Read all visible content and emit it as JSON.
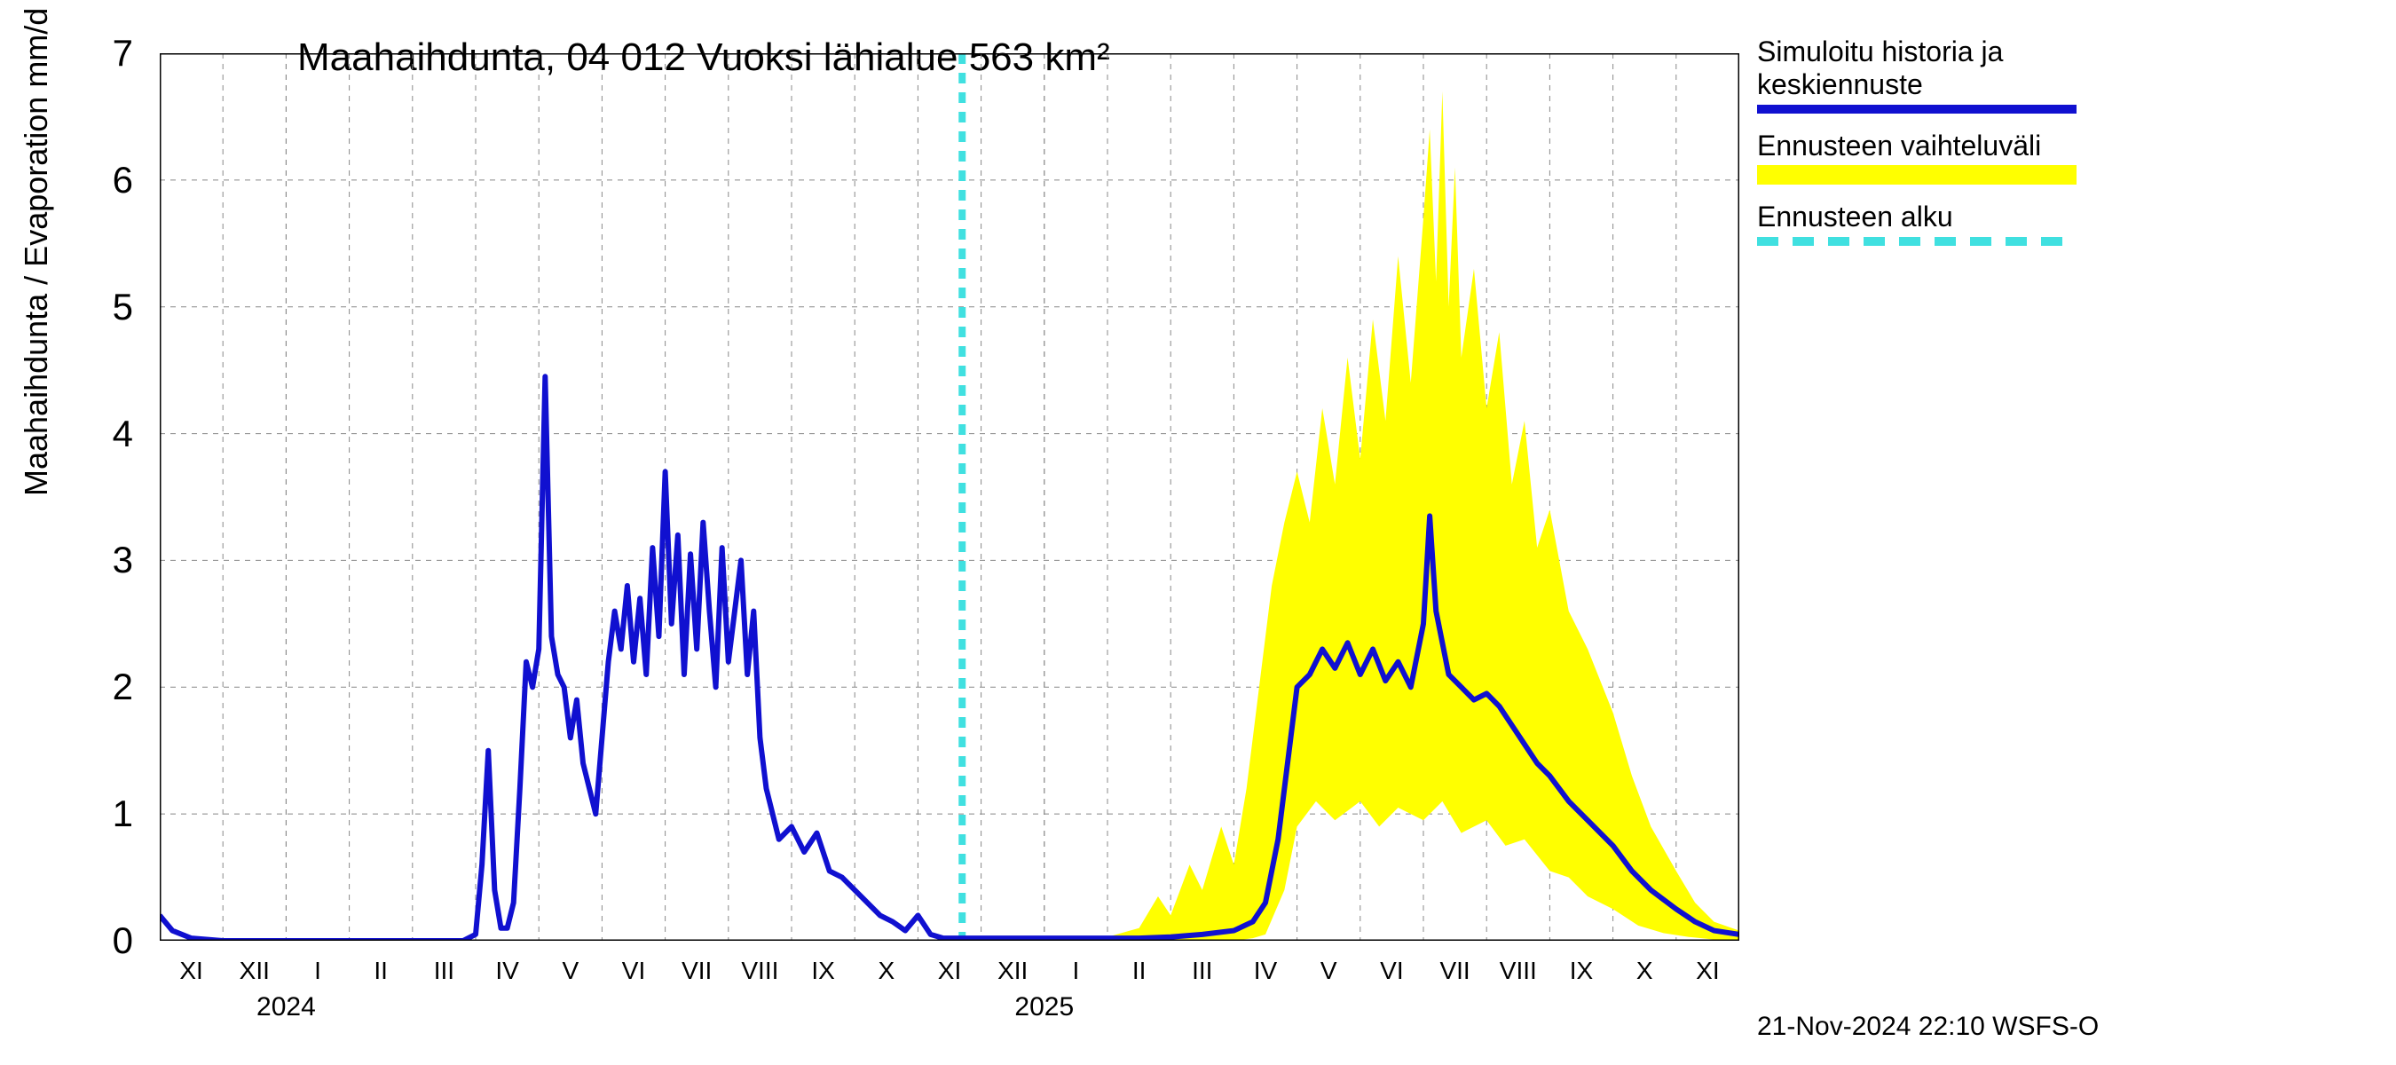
{
  "chart": {
    "title": "Maahaihdunta, 04 012 Vuoksi lähialue 563 km²",
    "y_axis_title": "Maahaihdunta / Evaporation   mm/d",
    "type": "line-with-band",
    "background_color": "#ffffff",
    "grid_color": "#888888",
    "axis_color": "#000000",
    "title_fontsize": 44,
    "axis_label_fontsize": 36,
    "tick_label_fontsize": 28,
    "ylim": [
      0,
      7
    ],
    "ytick_step": 1,
    "yticks": [
      0,
      1,
      2,
      3,
      4,
      5,
      6,
      7
    ],
    "x_start_month_index": 0,
    "x_end_month_index": 25,
    "x_months": [
      "XI",
      "XII",
      "I",
      "II",
      "III",
      "IV",
      "V",
      "VI",
      "VII",
      "VIII",
      "IX",
      "X",
      "XI",
      "XII",
      "I",
      "II",
      "III",
      "IV",
      "V",
      "VI",
      "VII",
      "VIII",
      "IX",
      "X",
      "XI"
    ],
    "x_year_markers": [
      {
        "index_after": 1.5,
        "label": "2024"
      },
      {
        "index_after": 13.5,
        "label": "2025"
      }
    ],
    "forecast_start_index": 12.7,
    "colors": {
      "history_line": "#1010d0",
      "forecast_band": "#ffff00",
      "forecast_start_line": "#40e0e0"
    },
    "line_width_main": 6,
    "forecast_dash": "12,10",
    "history_line": [
      [
        0.0,
        0.2
      ],
      [
        0.2,
        0.08
      ],
      [
        0.5,
        0.02
      ],
      [
        1.0,
        0.0
      ],
      [
        2.0,
        0.0
      ],
      [
        3.0,
        0.0
      ],
      [
        4.0,
        0.0
      ],
      [
        4.8,
        0.0
      ],
      [
        5.0,
        0.05
      ],
      [
        5.1,
        0.6
      ],
      [
        5.2,
        1.5
      ],
      [
        5.3,
        0.4
      ],
      [
        5.4,
        0.1
      ],
      [
        5.5,
        0.1
      ],
      [
        5.6,
        0.3
      ],
      [
        5.7,
        1.2
      ],
      [
        5.8,
        2.2
      ],
      [
        5.9,
        2.0
      ],
      [
        6.0,
        2.3
      ],
      [
        6.1,
        4.45
      ],
      [
        6.2,
        2.4
      ],
      [
        6.3,
        2.1
      ],
      [
        6.4,
        2.0
      ],
      [
        6.5,
        1.6
      ],
      [
        6.6,
        1.9
      ],
      [
        6.7,
        1.4
      ],
      [
        6.8,
        1.2
      ],
      [
        6.9,
        1.0
      ],
      [
        7.0,
        1.6
      ],
      [
        7.1,
        2.2
      ],
      [
        7.2,
        2.6
      ],
      [
        7.3,
        2.3
      ],
      [
        7.4,
        2.8
      ],
      [
        7.5,
        2.2
      ],
      [
        7.6,
        2.7
      ],
      [
        7.7,
        2.1
      ],
      [
        7.8,
        3.1
      ],
      [
        7.9,
        2.4
      ],
      [
        8.0,
        3.7
      ],
      [
        8.1,
        2.5
      ],
      [
        8.2,
        3.2
      ],
      [
        8.3,
        2.1
      ],
      [
        8.4,
        3.05
      ],
      [
        8.5,
        2.3
      ],
      [
        8.6,
        3.3
      ],
      [
        8.7,
        2.6
      ],
      [
        8.8,
        2.0
      ],
      [
        8.9,
        3.1
      ],
      [
        9.0,
        2.2
      ],
      [
        9.1,
        2.6
      ],
      [
        9.2,
        3.0
      ],
      [
        9.3,
        2.1
      ],
      [
        9.4,
        2.6
      ],
      [
        9.5,
        1.6
      ],
      [
        9.6,
        1.2
      ],
      [
        9.7,
        1.0
      ],
      [
        9.8,
        0.8
      ],
      [
        10.0,
        0.9
      ],
      [
        10.2,
        0.7
      ],
      [
        10.4,
        0.85
      ],
      [
        10.6,
        0.55
      ],
      [
        10.8,
        0.5
      ],
      [
        11.0,
        0.4
      ],
      [
        11.2,
        0.3
      ],
      [
        11.4,
        0.2
      ],
      [
        11.6,
        0.15
      ],
      [
        11.8,
        0.08
      ],
      [
        12.0,
        0.2
      ],
      [
        12.2,
        0.05
      ],
      [
        12.4,
        0.02
      ],
      [
        12.7,
        0.02
      ],
      [
        13.0,
        0.02
      ],
      [
        14.0,
        0.02
      ],
      [
        15.0,
        0.02
      ],
      [
        15.5,
        0.02
      ],
      [
        16.0,
        0.03
      ],
      [
        16.5,
        0.05
      ],
      [
        17.0,
        0.08
      ],
      [
        17.3,
        0.15
      ],
      [
        17.5,
        0.3
      ],
      [
        17.7,
        0.8
      ],
      [
        17.9,
        1.6
      ],
      [
        18.0,
        2.0
      ],
      [
        18.2,
        2.1
      ],
      [
        18.4,
        2.3
      ],
      [
        18.6,
        2.15
      ],
      [
        18.8,
        2.35
      ],
      [
        19.0,
        2.1
      ],
      [
        19.2,
        2.3
      ],
      [
        19.4,
        2.05
      ],
      [
        19.6,
        2.2
      ],
      [
        19.8,
        2.0
      ],
      [
        20.0,
        2.5
      ],
      [
        20.1,
        3.35
      ],
      [
        20.2,
        2.6
      ],
      [
        20.4,
        2.1
      ],
      [
        20.6,
        2.0
      ],
      [
        20.8,
        1.9
      ],
      [
        21.0,
        1.95
      ],
      [
        21.2,
        1.85
      ],
      [
        21.4,
        1.7
      ],
      [
        21.6,
        1.55
      ],
      [
        21.8,
        1.4
      ],
      [
        22.0,
        1.3
      ],
      [
        22.3,
        1.1
      ],
      [
        22.6,
        0.95
      ],
      [
        23.0,
        0.75
      ],
      [
        23.3,
        0.55
      ],
      [
        23.6,
        0.4
      ],
      [
        24.0,
        0.25
      ],
      [
        24.3,
        0.15
      ],
      [
        24.6,
        0.08
      ],
      [
        25.0,
        0.05
      ]
    ],
    "forecast_band_upper": [
      [
        12.7,
        0.02
      ],
      [
        13.5,
        0.02
      ],
      [
        14.5,
        0.02
      ],
      [
        15.0,
        0.03
      ],
      [
        15.5,
        0.1
      ],
      [
        15.8,
        0.35
      ],
      [
        16.0,
        0.2
      ],
      [
        16.3,
        0.6
      ],
      [
        16.5,
        0.4
      ],
      [
        16.8,
        0.9
      ],
      [
        17.0,
        0.6
      ],
      [
        17.2,
        1.2
      ],
      [
        17.4,
        2.0
      ],
      [
        17.6,
        2.8
      ],
      [
        17.8,
        3.3
      ],
      [
        18.0,
        3.7
      ],
      [
        18.2,
        3.3
      ],
      [
        18.4,
        4.2
      ],
      [
        18.6,
        3.6
      ],
      [
        18.8,
        4.6
      ],
      [
        19.0,
        3.8
      ],
      [
        19.2,
        4.9
      ],
      [
        19.4,
        4.1
      ],
      [
        19.6,
        5.4
      ],
      [
        19.8,
        4.4
      ],
      [
        20.0,
        5.7
      ],
      [
        20.1,
        6.4
      ],
      [
        20.2,
        5.2
      ],
      [
        20.3,
        6.7
      ],
      [
        20.4,
        5.0
      ],
      [
        20.5,
        6.1
      ],
      [
        20.6,
        4.6
      ],
      [
        20.8,
        5.3
      ],
      [
        21.0,
        4.2
      ],
      [
        21.2,
        4.8
      ],
      [
        21.4,
        3.6
      ],
      [
        21.6,
        4.1
      ],
      [
        21.8,
        3.1
      ],
      [
        22.0,
        3.4
      ],
      [
        22.3,
        2.6
      ],
      [
        22.6,
        2.3
      ],
      [
        23.0,
        1.8
      ],
      [
        23.3,
        1.3
      ],
      [
        23.6,
        0.9
      ],
      [
        24.0,
        0.55
      ],
      [
        24.3,
        0.3
      ],
      [
        24.6,
        0.15
      ],
      [
        25.0,
        0.08
      ]
    ],
    "forecast_band_lower": [
      [
        12.7,
        0.0
      ],
      [
        14.0,
        0.0
      ],
      [
        15.0,
        0.0
      ],
      [
        16.0,
        0.0
      ],
      [
        16.5,
        0.0
      ],
      [
        17.0,
        0.0
      ],
      [
        17.3,
        0.02
      ],
      [
        17.5,
        0.05
      ],
      [
        17.8,
        0.4
      ],
      [
        18.0,
        0.9
      ],
      [
        18.3,
        1.1
      ],
      [
        18.6,
        0.95
      ],
      [
        19.0,
        1.1
      ],
      [
        19.3,
        0.9
      ],
      [
        19.6,
        1.05
      ],
      [
        20.0,
        0.95
      ],
      [
        20.3,
        1.1
      ],
      [
        20.6,
        0.85
      ],
      [
        21.0,
        0.95
      ],
      [
        21.3,
        0.75
      ],
      [
        21.6,
        0.8
      ],
      [
        22.0,
        0.55
      ],
      [
        22.3,
        0.5
      ],
      [
        22.6,
        0.35
      ],
      [
        23.0,
        0.25
      ],
      [
        23.4,
        0.12
      ],
      [
        23.8,
        0.06
      ],
      [
        24.2,
        0.03
      ],
      [
        24.6,
        0.01
      ],
      [
        25.0,
        0.0
      ]
    ]
  },
  "legend": {
    "entries": [
      {
        "label_line1": "Simuloitu historia ja",
        "label_line2": "keskiennuste",
        "swatch_type": "solid",
        "swatch_color": "#1010d0"
      },
      {
        "label_line1": "Ennusteen vaihteluväli",
        "label_line2": "",
        "swatch_type": "block",
        "swatch_color": "#ffff00"
      },
      {
        "label_line1": "Ennusteen alku",
        "label_line2": "",
        "swatch_type": "dashed",
        "swatch_color": "#40e0e0"
      }
    ]
  },
  "timestamp": "21-Nov-2024 22:10 WSFS-O"
}
